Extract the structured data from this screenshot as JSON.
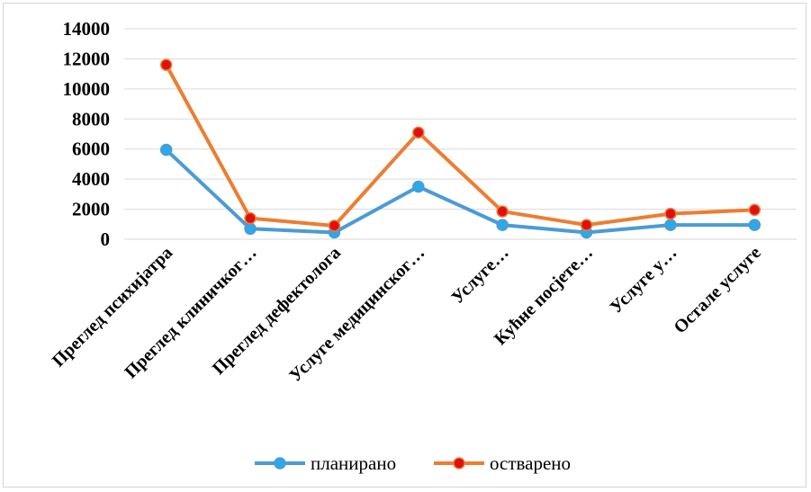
{
  "chart_data": {
    "type": "line",
    "categories": [
      "Преглед психијатра",
      "Преглед клиничког…",
      "Преглед дефектолога",
      "Услуге медицинског…",
      "Услуге…",
      "Кућне посјете…",
      "Услуге у…",
      "Остале услуге"
    ],
    "series": [
      {
        "name": "планирано",
        "values": [
          5950,
          700,
          450,
          3500,
          950,
          450,
          950,
          950
        ],
        "color": "#4a9bd6",
        "marker_color": "#2fa8e6"
      },
      {
        "name": "остварено",
        "values": [
          11600,
          1400,
          900,
          7100,
          1850,
          950,
          1700,
          1950
        ],
        "color": "#ed7d31",
        "marker_color": "#e01010"
      }
    ],
    "ylim": [
      0,
      14000
    ],
    "yticks": [
      "0",
      "2000",
      "4000",
      "6000",
      "8000",
      "10000",
      "12000",
      "14000"
    ],
    "grid": true,
    "legend_position": "bottom",
    "title": "",
    "xlabel": "",
    "ylabel": ""
  }
}
